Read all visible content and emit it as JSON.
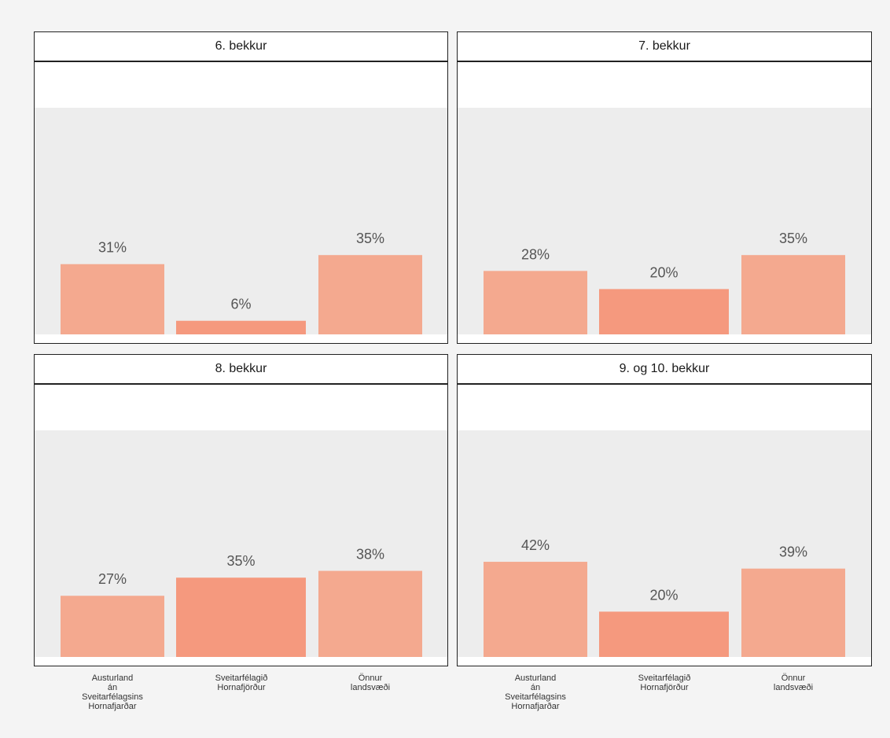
{
  "colors": {
    "page_background": "#f4f4f4",
    "plot_panel": "#ededed",
    "bar_default": "#f4a98f",
    "bar_highlight": "#f5997e",
    "value_label": "#555555"
  },
  "chart_data": {
    "type": "bar",
    "layout": "facet-2x2",
    "categories": [
      "Austurland\nán\nSveitarfélagsins\nHornafjarðar",
      "Sveitarfélagið\nHornafjörður",
      "Önnur\nlandsvæði"
    ],
    "highlight_category_index": 1,
    "value_suffix": "%",
    "ylim": [
      0,
      100
    ],
    "grid": false,
    "legend": "none",
    "facets": [
      {
        "title": "6. bekkur",
        "values": [
          31,
          6,
          35
        ]
      },
      {
        "title": "7. bekkur",
        "values": [
          28,
          20,
          35
        ]
      },
      {
        "title": "8. bekkur",
        "values": [
          27,
          35,
          38
        ]
      },
      {
        "title": "9. og 10. bekkur",
        "values": [
          42,
          20,
          39
        ]
      }
    ]
  }
}
